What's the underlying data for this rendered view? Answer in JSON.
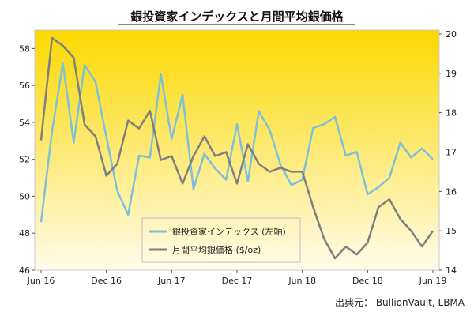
{
  "chart_data": {
    "type": "line",
    "title": "銀投資家インデックスと月間平均銀価格",
    "source": "出典元： BullionVault, LBMA",
    "x_tick_labels": [
      "Jun 16",
      "Dec 16",
      "Jun 17",
      "Dec 17",
      "Jun 18",
      "Dec 18",
      "Jun 19"
    ],
    "x_tick_index": [
      0,
      6,
      12,
      18,
      24,
      30,
      36
    ],
    "y_left": {
      "ticks": [
        46,
        48,
        50,
        52,
        54,
        56,
        58
      ],
      "range": [
        46,
        59
      ]
    },
    "y_right": {
      "ticks": [
        14,
        15,
        16,
        17,
        18,
        19,
        20
      ],
      "range": [
        14,
        20.1
      ]
    },
    "legend_position": "bottom-center",
    "background": {
      "top": "#fbd800",
      "bottom": "#fffbea",
      "border": "#c8c8c8"
    },
    "series": [
      {
        "name": "銀投資家インデックス (左軸)",
        "axis": "left",
        "color": "#7fc0d9",
        "values": [
          48.6,
          53.5,
          57.2,
          52.9,
          57.1,
          56.2,
          53.2,
          50.3,
          49.0,
          52.2,
          52.1,
          56.6,
          53.1,
          55.5,
          50.4,
          52.3,
          51.5,
          50.9,
          53.9,
          50.8,
          54.6,
          53.6,
          51.7,
          50.6,
          50.9,
          53.7,
          53.9,
          54.3,
          52.2,
          52.4,
          50.1,
          50.5,
          51.0,
          52.9,
          52.1,
          52.6,
          52.0
        ]
      },
      {
        "name": "月間平均銀価格 ($/oz)",
        "axis": "right",
        "color": "#7f7f7f",
        "values": [
          17.3,
          19.9,
          19.7,
          19.4,
          17.7,
          17.4,
          16.4,
          16.7,
          17.8,
          17.6,
          18.05,
          16.8,
          16.9,
          16.2,
          16.9,
          17.4,
          16.9,
          17.0,
          16.2,
          17.2,
          16.7,
          16.5,
          16.6,
          16.5,
          16.5,
          15.6,
          14.8,
          14.3,
          14.6,
          14.4,
          14.7,
          15.6,
          15.8,
          15.3,
          15.0,
          14.6,
          15.0
        ]
      }
    ]
  }
}
